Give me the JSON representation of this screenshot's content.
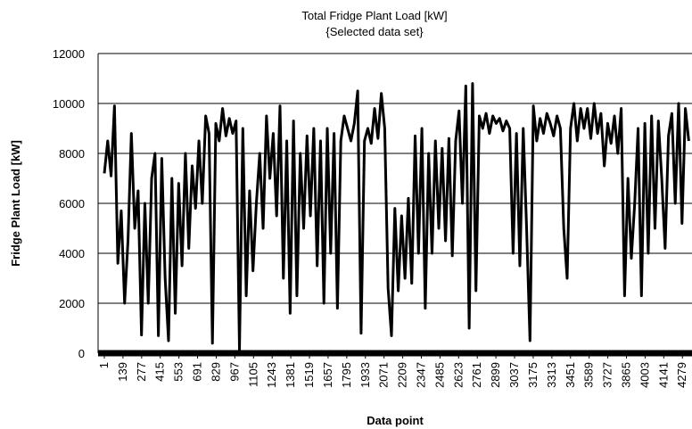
{
  "chart_data": {
    "type": "line",
    "title": "Total Fridge Plant Load [kW]",
    "subtitle": "{Selected data set}",
    "x_label": "Data point",
    "y_label": "Fridge Plant Load [kW]",
    "xlim": [
      1,
      4350
    ],
    "ylim": [
      0,
      12000
    ],
    "xticks": [
      1,
      139,
      277,
      415,
      553,
      691,
      829,
      967,
      1105,
      1243,
      1381,
      1519,
      1657,
      1795,
      1933,
      2071,
      2209,
      2347,
      2485,
      2623,
      2761,
      2899,
      3037,
      3175,
      3313,
      3451,
      3589,
      3727,
      3865,
      4003,
      4141,
      4279
    ],
    "yticks": [
      0,
      2000,
      4000,
      6000,
      8000,
      10000,
      12000
    ],
    "grid": true,
    "x": [
      1,
      26,
      51,
      76,
      101,
      126,
      151,
      176,
      201,
      226,
      251,
      276,
      301,
      326,
      351,
      376,
      401,
      426,
      451,
      476,
      501,
      526,
      551,
      576,
      601,
      626,
      651,
      676,
      701,
      726,
      751,
      776,
      801,
      826,
      851,
      876,
      901,
      926,
      951,
      976,
      1001,
      1026,
      1051,
      1076,
      1101,
      1126,
      1151,
      1176,
      1201,
      1226,
      1251,
      1276,
      1301,
      1326,
      1351,
      1376,
      1401,
      1426,
      1451,
      1476,
      1501,
      1526,
      1551,
      1576,
      1601,
      1626,
      1651,
      1676,
      1701,
      1726,
      1751,
      1776,
      1801,
      1826,
      1851,
      1876,
      1901,
      1926,
      1951,
      1976,
      2001,
      2026,
      2051,
      2076,
      2101,
      2126,
      2151,
      2176,
      2201,
      2226,
      2251,
      2276,
      2301,
      2326,
      2351,
      2376,
      2401,
      2426,
      2451,
      2476,
      2501,
      2526,
      2551,
      2576,
      2601,
      2626,
      2651,
      2676,
      2701,
      2726,
      2751,
      2776,
      2801,
      2826,
      2851,
      2876,
      2901,
      2926,
      2951,
      2976,
      3001,
      3026,
      3051,
      3076,
      3101,
      3126,
      3151,
      3176,
      3201,
      3226,
      3251,
      3276,
      3301,
      3326,
      3351,
      3376,
      3401,
      3426,
      3451,
      3476,
      3501,
      3526,
      3551,
      3576,
      3601,
      3626,
      3651,
      3676,
      3701,
      3726,
      3751,
      3776,
      3801,
      3826,
      3851,
      3876,
      3901,
      3926,
      3951,
      3976,
      4001,
      4026,
      4051,
      4076,
      4101,
      4126,
      4151,
      4176,
      4201,
      4226,
      4251,
      4276,
      4301,
      4326
    ],
    "series": [
      {
        "name": "Fridge Plant Load",
        "color": "#000000",
        "values": [
          7200,
          8500,
          7100,
          9900,
          3600,
          5700,
          2000,
          4500,
          8800,
          5000,
          6500,
          730,
          6000,
          2000,
          7000,
          8000,
          700,
          7800,
          3000,
          500,
          7000,
          1600,
          6800,
          3500,
          8000,
          4200,
          7500,
          5800,
          8500,
          6000,
          9500,
          8800,
          400,
          9200,
          8500,
          9800,
          8700,
          9400,
          8800,
          9300,
          150,
          9000,
          2300,
          6500,
          3300,
          6000,
          8000,
          5000,
          9500,
          7000,
          8800,
          5500,
          9900,
          3000,
          8500,
          1600,
          9300,
          2300,
          8000,
          5000,
          8700,
          5500,
          9000,
          3500,
          8500,
          2000,
          9000,
          4000,
          8800,
          1800,
          8500,
          9500,
          9000,
          8500,
          9200,
          10500,
          800,
          8500,
          9000,
          8400,
          9800,
          8600,
          10400,
          9000,
          2600,
          700,
          5800,
          2500,
          5500,
          3000,
          6200,
          2800,
          8700,
          4000,
          9000,
          1800,
          8000,
          4000,
          8500,
          5000,
          8200,
          4500,
          8600,
          3900,
          8500,
          9700,
          6000,
          10700,
          1000,
          10800,
          2500,
          9500,
          9000,
          9600,
          8800,
          9500,
          9200,
          9400,
          8900,
          9300,
          9000,
          4000,
          8800,
          3500,
          9000,
          5000,
          500,
          9900,
          8500,
          9400,
          8800,
          9600,
          9200,
          8700,
          9500,
          9000,
          5000,
          3000,
          9000,
          10000,
          8500,
          9800,
          9000,
          9800,
          8600,
          10000,
          8800,
          9600,
          7500,
          9200,
          8400,
          9500,
          8000,
          9800,
          2300,
          7000,
          3800,
          6000,
          9000,
          2300,
          9200,
          4000,
          9500,
          5000,
          9300,
          7000,
          4200,
          8700,
          9600,
          6000,
          10000,
          5200,
          9800,
          8500
        ]
      }
    ]
  }
}
